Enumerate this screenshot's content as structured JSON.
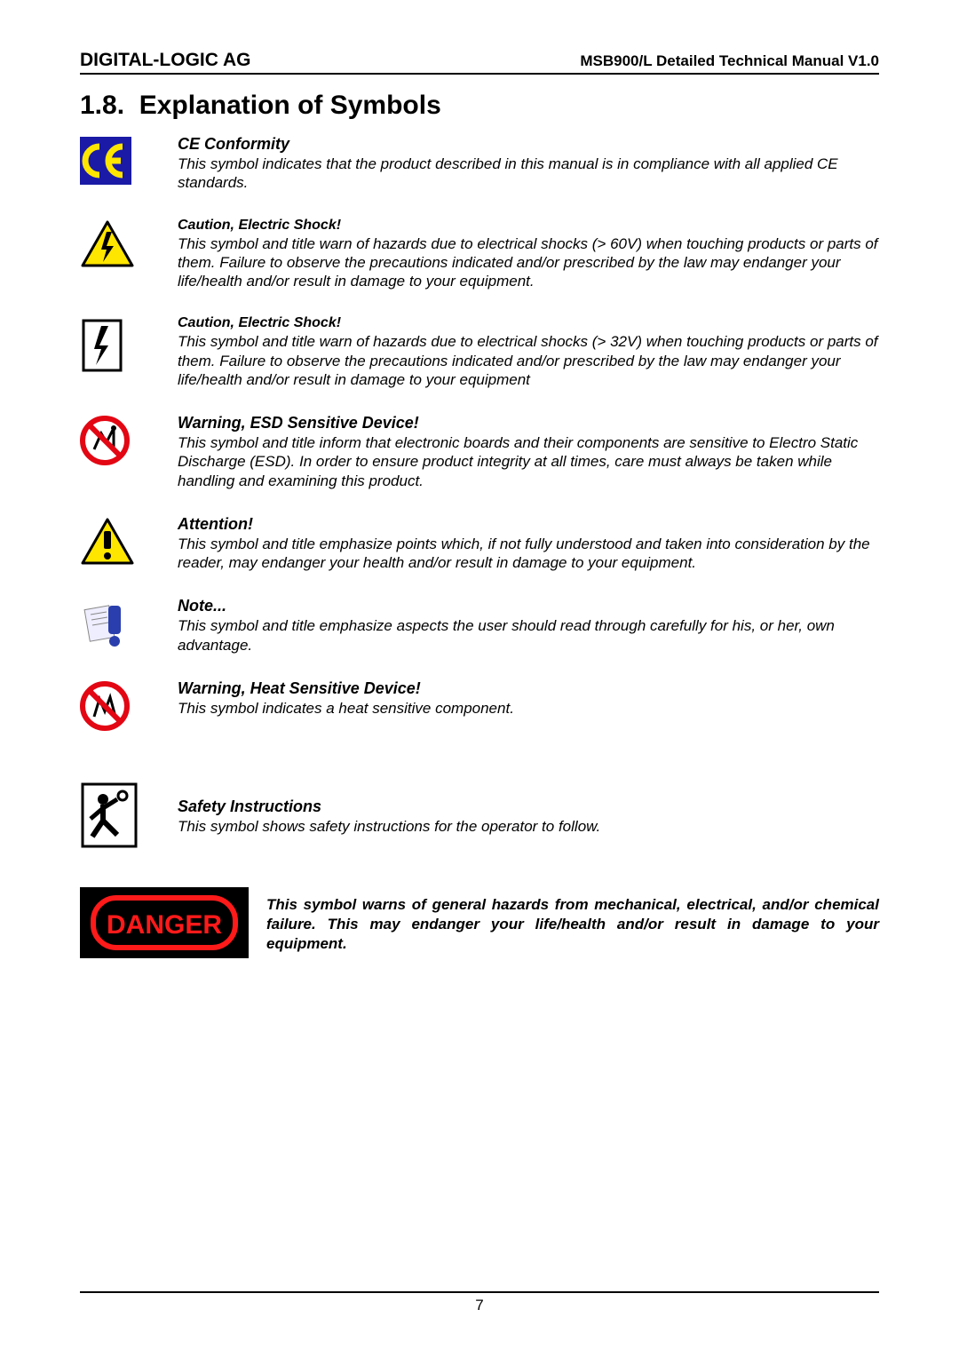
{
  "header": {
    "company": "DIGITAL-LOGIC AG",
    "docTitle": "MSB900/L Detailed Technical Manual V1.0"
  },
  "section": {
    "number": "1.8.",
    "title": "Explanation of Symbols"
  },
  "symbols": [
    {
      "icon": "ce",
      "titleClass": "sym-title",
      "title": "CE Conformity",
      "body": "This symbol indicates that the product described in this manual is in compliance with all applied CE standards."
    },
    {
      "icon": "shock60",
      "titleClass": "sym-title-small",
      "title": "Caution, Electric Shock!",
      "body": "This symbol and title warn of hazards due to electrical shocks (> 60V) when touching products or parts of them. Failure to observe the precautions indicated and/or prescribed by the law may endanger your life/health and/or result in damage to your equipment."
    },
    {
      "icon": "shock32",
      "titleClass": "sym-title-small",
      "title": "Caution, Electric Shock!",
      "body": "This symbol and title warn of hazards due to electrical shocks (> 32V) when touching products or parts of them. Failure to observe the precautions indicated and/or prescribed by the law may endanger your life/health and/or result in damage to your equipment"
    },
    {
      "icon": "esd",
      "titleClass": "sym-title",
      "title": "Warning, ESD Sensitive Device!",
      "body": "This symbol and title inform that electronic boards and their components are sensitive to Electro Static Discharge (ESD). In order to ensure product integrity at all times, care must always be taken while handling and examining this product."
    },
    {
      "icon": "attention",
      "titleClass": "sym-title",
      "title": "Attention!",
      "body": "This symbol and title emphasize points which, if not fully understood and taken into consideration by the reader, may endanger your health and/or result in damage to your equipment."
    },
    {
      "icon": "note",
      "titleClass": "sym-title",
      "title": "Note...",
      "body": "This symbol and title emphasize aspects the user should read through carefully for his, or her, own advantage."
    },
    {
      "icon": "heat",
      "titleClass": "sym-title",
      "title": "Warning, Heat Sensitive Device!",
      "body": "This symbol indicates a heat sensitive component."
    },
    {
      "icon": "safety",
      "titleClass": "sym-title",
      "title": "Safety Instructions",
      "body": "This symbol shows safety instructions for the operator to follow."
    }
  ],
  "danger": {
    "body": "This symbol warns of general hazards from mechanical, electrical, and/or chemical failure. This may endanger your life/health and/or result in damage to your equipment."
  },
  "footer": {
    "pageNumber": "7"
  },
  "colors": {
    "ceBg": "#1a1aa6",
    "ceFg": "#ffe600",
    "warnTriBg": "#ffe600",
    "warnTriBorder": "#000000",
    "prohibitRed": "#e30613",
    "dangerBg": "#000000",
    "dangerFg": "#ff1a1a",
    "noteBlue": "#2a3fad"
  }
}
